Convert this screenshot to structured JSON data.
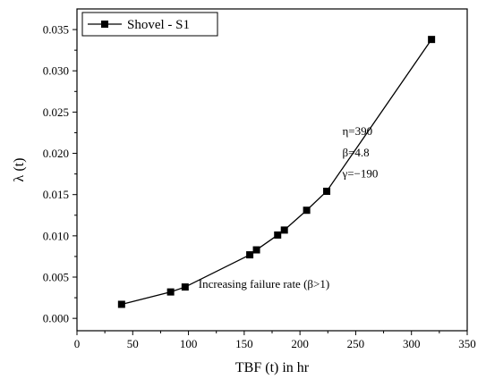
{
  "chart_data": {
    "type": "line",
    "xlabel": "TBF (t) in hr",
    "ylabel": "λ (t)",
    "xlim": [
      0,
      350
    ],
    "ylim": [
      -0.0015,
      0.0375
    ],
    "xticks": [
      0,
      50,
      100,
      150,
      200,
      250,
      300,
      350
    ],
    "yticks": [
      0.0,
      0.005,
      0.01,
      0.015,
      0.02,
      0.025,
      0.03,
      0.035
    ],
    "ytick_labels": [
      "0.000",
      "0.005",
      "0.010",
      "0.015",
      "0.020",
      "0.025",
      "0.030",
      "0.035"
    ],
    "grid": false,
    "legend": {
      "position": "top-left",
      "entries": [
        "Shovel - S1"
      ]
    },
    "series": [
      {
        "name": "Shovel - S1",
        "marker": "square",
        "color": "#000000",
        "x": [
          40,
          84,
          97,
          155,
          161,
          180,
          186,
          206,
          224,
          318
        ],
        "y": [
          0.0017,
          0.0032,
          0.0038,
          0.0077,
          0.0083,
          0.0101,
          0.0107,
          0.0131,
          0.0154,
          0.0338
        ]
      }
    ],
    "annotations": [
      {
        "text": "η=390",
        "x": 238,
        "y": 0.0222
      },
      {
        "text": "β=4.8",
        "x": 238,
        "y": 0.0196
      },
      {
        "text": "γ=−190",
        "x": 238,
        "y": 0.0171
      },
      {
        "text": "Increasing failure rate (β>1)",
        "x": 109,
        "y": 0.0037
      }
    ]
  }
}
